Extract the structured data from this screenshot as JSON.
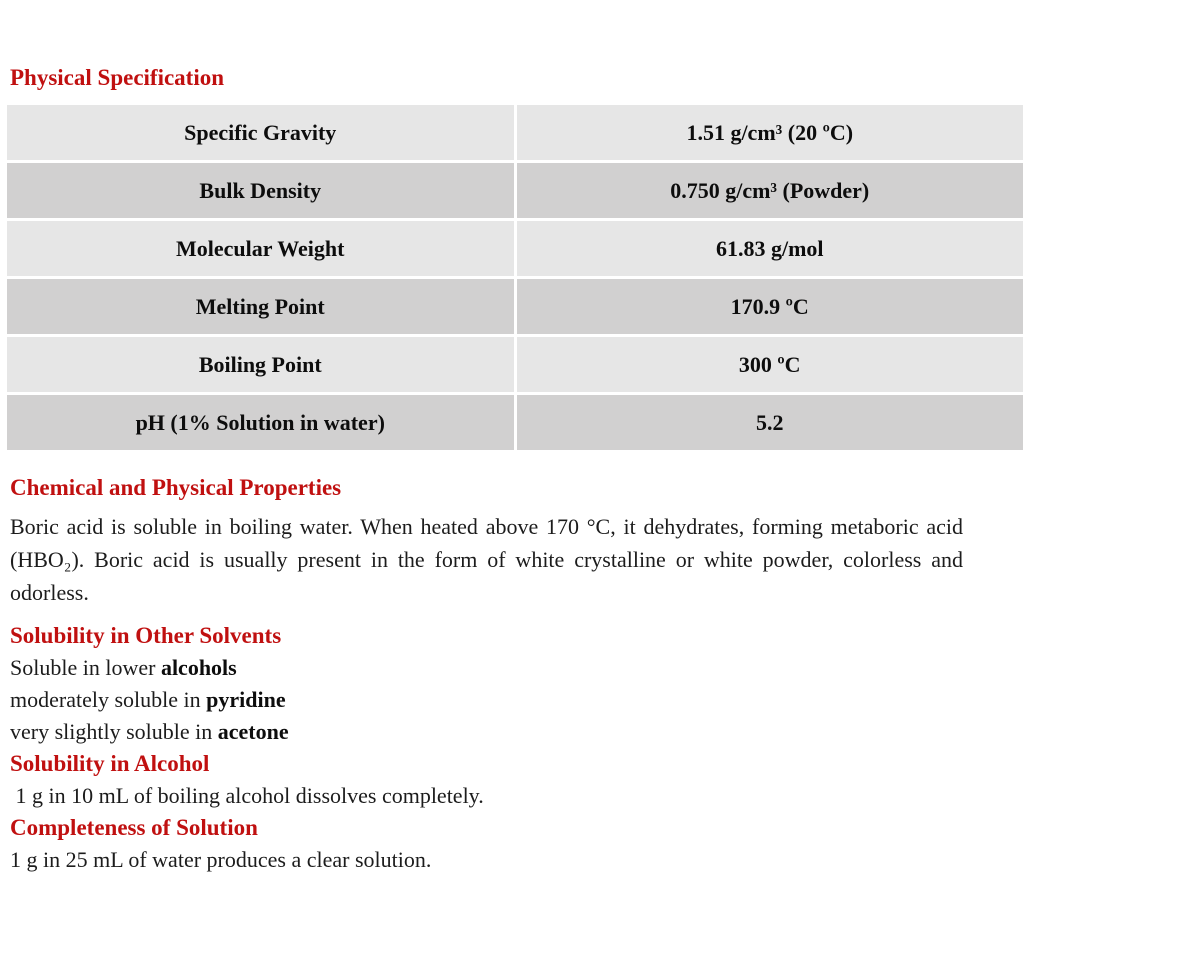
{
  "page": {
    "background_color": "#ffffff",
    "accent_red": "#c01010",
    "table_row_light": "#e6e6e6",
    "table_row_dark": "#d1d0d0"
  },
  "physical_specification": {
    "heading": "Physical Specification",
    "table": {
      "rows": [
        {
          "property": "Specific Gravity",
          "value": "1.51 g/cm³ (20 ºC)"
        },
        {
          "property": "Bulk Density",
          "value": "0.750 g/cm³ (Powder)"
        },
        {
          "property": "Molecular Weight",
          "value": "61.83 g/mol"
        },
        {
          "property": "Melting Point",
          "value": "170.9 ºC"
        },
        {
          "property": "Boiling Point",
          "value": "300 ºC"
        },
        {
          "property": "pH (1% Solution in water)",
          "value": "5.2"
        }
      ]
    }
  },
  "chemical_physical_properties": {
    "heading": "Chemical and Physical Properties",
    "body": "Boric acid is soluble in boiling water. When heated above 170 °C, it dehydrates, forming metaboric acid (HBO₂). Boric acid is usually present in the form of white crystalline or white powder, colorless and odorless."
  },
  "solubility_other_solvents": {
    "heading": "Solubility in Other Solvents",
    "lines": [
      {
        "prefix": "Soluble in lower ",
        "bold": "alcohols"
      },
      {
        "prefix": "moderately soluble in ",
        "bold": "pyridine"
      },
      {
        "prefix": "very slightly soluble in ",
        "bold": "acetone"
      }
    ]
  },
  "solubility_alcohol": {
    "heading": "Solubility in Alcohol",
    "body": " 1 g in 10 mL of boiling alcohol dissolves completely."
  },
  "completeness_of_solution": {
    "heading": "Completeness of Solution",
    "body": "1 g in 25 mL of water produces a clear solution."
  }
}
